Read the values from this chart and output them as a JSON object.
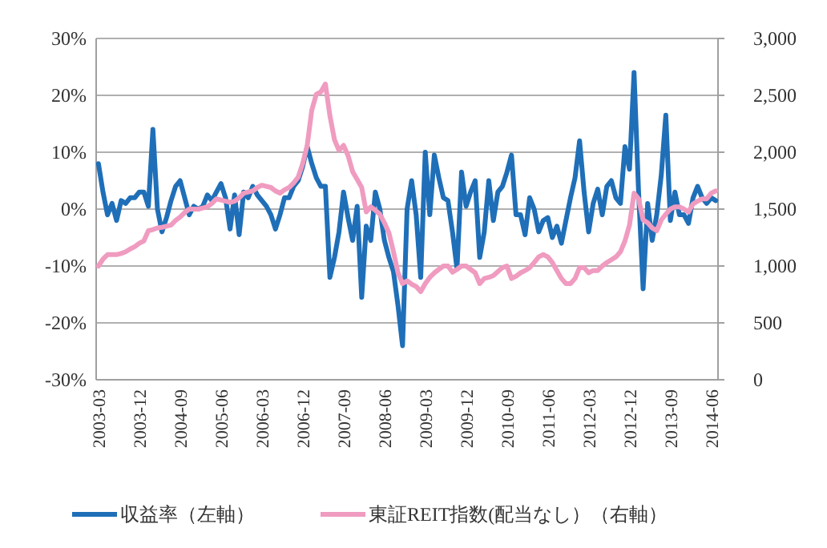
{
  "chart_data": {
    "type": "line",
    "categories": [
      "2003-03",
      null,
      null,
      null,
      null,
      null,
      null,
      null,
      null,
      "2003-12",
      null,
      null,
      null,
      null,
      null,
      null,
      null,
      null,
      "2004-09",
      null,
      null,
      null,
      null,
      null,
      null,
      null,
      null,
      "2005-06",
      null,
      null,
      null,
      null,
      null,
      null,
      null,
      null,
      "2006-03",
      null,
      null,
      null,
      null,
      null,
      null,
      null,
      null,
      "2006-12",
      null,
      null,
      null,
      null,
      null,
      null,
      null,
      null,
      "2007-09",
      null,
      null,
      null,
      null,
      null,
      null,
      null,
      null,
      "2008-06",
      null,
      null,
      null,
      null,
      null,
      null,
      null,
      null,
      "2009-03",
      null,
      null,
      null,
      null,
      null,
      null,
      null,
      null,
      "2009-12",
      null,
      null,
      null,
      null,
      null,
      null,
      null,
      null,
      "2010-09",
      null,
      null,
      null,
      null,
      null,
      null,
      null,
      null,
      "2011-06",
      null,
      null,
      null,
      null,
      null,
      null,
      null,
      null,
      "2012-03",
      null,
      null,
      null,
      null,
      null,
      null,
      null,
      null,
      "2012-12",
      null,
      null,
      null,
      null,
      null,
      null,
      null,
      null,
      "2013-09",
      null,
      null,
      null,
      null,
      null,
      null,
      null,
      null,
      "2014-06",
      null
    ],
    "series": [
      {
        "name": "収益率（左軸）",
        "color": "#1f6fb8",
        "values": [
          8,
          3,
          -1,
          1,
          -2,
          1.5,
          1,
          2,
          2,
          3,
          3,
          0.5,
          14,
          0,
          -4,
          -1.5,
          1.5,
          4,
          5,
          2,
          -1,
          0.5,
          0,
          0.5,
          2.5,
          1.5,
          3,
          4.5,
          2,
          -3.5,
          2.5,
          -4.5,
          3,
          2,
          4,
          2.5,
          1.5,
          0.5,
          -1,
          -3.5,
          -1,
          2,
          2,
          4,
          5,
          7.5,
          11,
          8,
          5.5,
          4,
          4,
          -12,
          -8.5,
          -4,
          3,
          -1.5,
          -5.5,
          0.5,
          -15.5,
          -3,
          -5.5,
          3,
          0,
          -5.5,
          -8.5,
          -11,
          -17,
          -24,
          0,
          5,
          -1,
          -12,
          10,
          -1,
          9.5,
          5.5,
          2,
          1.5,
          -4,
          -10.5,
          6.5,
          0.5,
          3,
          5,
          -8.5,
          -4,
          5,
          -2,
          3,
          4,
          6.5,
          9.5,
          -1,
          -1,
          -4.5,
          2,
          0,
          -4,
          -2,
          -1.5,
          -5,
          -3,
          -6,
          -2,
          2,
          5.5,
          12,
          3,
          -4,
          1,
          3.5,
          -1,
          4,
          5,
          2,
          1,
          11,
          7,
          24,
          3,
          -14,
          1,
          -5.5,
          -1,
          6,
          16.5,
          -2,
          3,
          -1,
          -1,
          -2.5,
          2,
          4,
          2,
          1,
          2,
          1.5
        ]
      },
      {
        "name": "東証REIT指数(配当なし）（右軸）",
        "color": "#f09bc0",
        "axis": "y2",
        "values": [
          1000,
          1060,
          1100,
          1100,
          1100,
          1110,
          1125,
          1150,
          1170,
          1200,
          1220,
          1310,
          1320,
          1335,
          1340,
          1350,
          1360,
          1400,
          1430,
          1470,
          1500,
          1500,
          1500,
          1510,
          1520,
          1550,
          1590,
          1580,
          1570,
          1560,
          1570,
          1600,
          1640,
          1650,
          1660,
          1690,
          1710,
          1700,
          1690,
          1660,
          1640,
          1670,
          1690,
          1730,
          1780,
          1900,
          2060,
          2370,
          2510,
          2530,
          2600,
          2320,
          2110,
          2015,
          2060,
          1970,
          1830,
          1760,
          1690,
          1475,
          1520,
          1490,
          1455,
          1380,
          1290,
          1125,
          940,
          845,
          870,
          840,
          820,
          775,
          845,
          900,
          940,
          970,
          1000,
          1000,
          945,
          970,
          1000,
          1000,
          970,
          940,
          845,
          890,
          900,
          915,
          950,
          985,
          1000,
          890,
          910,
          940,
          960,
          985,
          1030,
          1080,
          1100,
          1080,
          1030,
          960,
          890,
          845,
          845,
          890,
          985,
          985,
          940,
          960,
          960,
          1000,
          1030,
          1055,
          1080,
          1125,
          1220,
          1360,
          1640,
          1590,
          1405,
          1380,
          1335,
          1310,
          1405,
          1455,
          1500,
          1520,
          1520,
          1500,
          1475,
          1545,
          1570,
          1590,
          1590,
          1640,
          1660
        ]
      }
    ],
    "ylim": [
      -30,
      30
    ],
    "yticks": [
      {
        "value": -30,
        "label": "-30%"
      },
      {
        "value": -20,
        "label": "-20%"
      },
      {
        "value": -10,
        "label": "-10%"
      },
      {
        "value": 0,
        "label": "0%"
      },
      {
        "value": 10,
        "label": "10%"
      },
      {
        "value": 20,
        "label": "20%"
      },
      {
        "value": 30,
        "label": "30%"
      }
    ],
    "y2lim": [
      0,
      3000
    ],
    "y2ticks": [
      0,
      500,
      {
        "value": 1000,
        "label": "1,000"
      },
      {
        "value": 1500,
        "label": "1,500"
      },
      {
        "value": 2000,
        "label": "2,000"
      },
      {
        "value": 2500,
        "label": "2,500"
      },
      {
        "value": 3000,
        "label": "3,000"
      }
    ],
    "grid": "y",
    "legend": "bottom"
  }
}
